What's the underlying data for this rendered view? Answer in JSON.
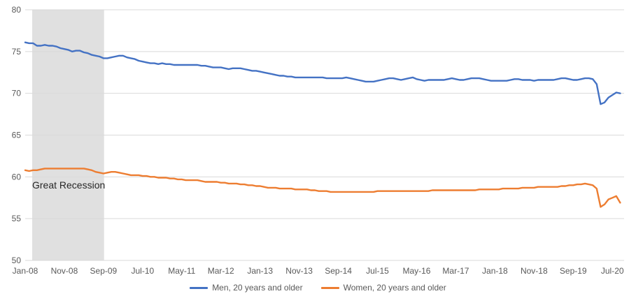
{
  "chart_data": {
    "type": "line",
    "ylim": [
      50,
      80
    ],
    "yticks": [
      50,
      55,
      60,
      65,
      70,
      75,
      80
    ],
    "grid": "horizontal",
    "legend_position": "bottom",
    "x_start": "2008-01",
    "x_end": "2020-10",
    "xticks": [
      "Jan-08",
      "Nov-08",
      "Sep-09",
      "Jul-10",
      "May-11",
      "Mar-12",
      "Jan-13",
      "Nov-13",
      "Sep-14",
      "Jul-15",
      "May-16",
      "Mar-17",
      "Jan-18",
      "Nov-18",
      "Sep-19",
      "Jul-20"
    ],
    "shaded_regions": [
      {
        "label": "Great Recession",
        "start": "2008-01",
        "end": "2009-06",
        "color": "#e0e0e0"
      }
    ],
    "series": [
      {
        "name": "Men, 20 years and older",
        "color": "#4472c4",
        "values": [
          76.1,
          76.0,
          76.0,
          75.7,
          75.7,
          75.8,
          75.7,
          75.7,
          75.6,
          75.4,
          75.3,
          75.2,
          75.0,
          75.1,
          75.1,
          74.9,
          74.8,
          74.6,
          74.5,
          74.4,
          74.2,
          74.2,
          74.3,
          74.4,
          74.5,
          74.5,
          74.3,
          74.2,
          74.1,
          73.9,
          73.8,
          73.7,
          73.6,
          73.6,
          73.5,
          73.6,
          73.5,
          73.5,
          73.4,
          73.4,
          73.4,
          73.4,
          73.4,
          73.4,
          73.4,
          73.3,
          73.3,
          73.2,
          73.1,
          73.1,
          73.1,
          73.0,
          72.9,
          73.0,
          73.0,
          73.0,
          72.9,
          72.8,
          72.7,
          72.7,
          72.6,
          72.5,
          72.4,
          72.3,
          72.2,
          72.1,
          72.1,
          72.0,
          72.0,
          71.9,
          71.9,
          71.9,
          71.9,
          71.9,
          71.9,
          71.9,
          71.9,
          71.8,
          71.8,
          71.8,
          71.8,
          71.8,
          71.9,
          71.8,
          71.7,
          71.6,
          71.5,
          71.4,
          71.4,
          71.4,
          71.5,
          71.6,
          71.7,
          71.8,
          71.8,
          71.7,
          71.6,
          71.7,
          71.8,
          71.9,
          71.7,
          71.6,
          71.5,
          71.6,
          71.6,
          71.6,
          71.6,
          71.6,
          71.7,
          71.8,
          71.7,
          71.6,
          71.6,
          71.7,
          71.8,
          71.8,
          71.8,
          71.7,
          71.6,
          71.5,
          71.5,
          71.5,
          71.5,
          71.5,
          71.6,
          71.7,
          71.7,
          71.6,
          71.6,
          71.6,
          71.5,
          71.6,
          71.6,
          71.6,
          71.6,
          71.6,
          71.7,
          71.8,
          71.8,
          71.7,
          71.6,
          71.6,
          71.7,
          71.8,
          71.8,
          71.7,
          71.1,
          68.7,
          68.9,
          69.5,
          69.8,
          70.1,
          70.0
        ]
      },
      {
        "name": "Women, 20 years and older",
        "color": "#ed7d31",
        "values": [
          60.8,
          60.7,
          60.8,
          60.8,
          60.9,
          61.0,
          61.0,
          61.0,
          61.0,
          61.0,
          61.0,
          61.0,
          61.0,
          61.0,
          61.0,
          61.0,
          60.9,
          60.8,
          60.6,
          60.5,
          60.4,
          60.5,
          60.6,
          60.6,
          60.5,
          60.4,
          60.3,
          60.2,
          60.2,
          60.2,
          60.1,
          60.1,
          60.0,
          60.0,
          59.9,
          59.9,
          59.9,
          59.8,
          59.8,
          59.7,
          59.7,
          59.6,
          59.6,
          59.6,
          59.6,
          59.5,
          59.4,
          59.4,
          59.4,
          59.4,
          59.3,
          59.3,
          59.2,
          59.2,
          59.2,
          59.1,
          59.1,
          59.0,
          59.0,
          58.9,
          58.9,
          58.8,
          58.7,
          58.7,
          58.7,
          58.6,
          58.6,
          58.6,
          58.6,
          58.5,
          58.5,
          58.5,
          58.5,
          58.4,
          58.4,
          58.3,
          58.3,
          58.3,
          58.2,
          58.2,
          58.2,
          58.2,
          58.2,
          58.2,
          58.2,
          58.2,
          58.2,
          58.2,
          58.2,
          58.2,
          58.3,
          58.3,
          58.3,
          58.3,
          58.3,
          58.3,
          58.3,
          58.3,
          58.3,
          58.3,
          58.3,
          58.3,
          58.3,
          58.3,
          58.4,
          58.4,
          58.4,
          58.4,
          58.4,
          58.4,
          58.4,
          58.4,
          58.4,
          58.4,
          58.4,
          58.4,
          58.5,
          58.5,
          58.5,
          58.5,
          58.5,
          58.5,
          58.6,
          58.6,
          58.6,
          58.6,
          58.6,
          58.7,
          58.7,
          58.7,
          58.7,
          58.8,
          58.8,
          58.8,
          58.8,
          58.8,
          58.8,
          58.9,
          58.9,
          59.0,
          59.0,
          59.1,
          59.1,
          59.2,
          59.1,
          59.0,
          58.6,
          56.4,
          56.7,
          57.3,
          57.5,
          57.7,
          56.9
        ]
      }
    ]
  }
}
